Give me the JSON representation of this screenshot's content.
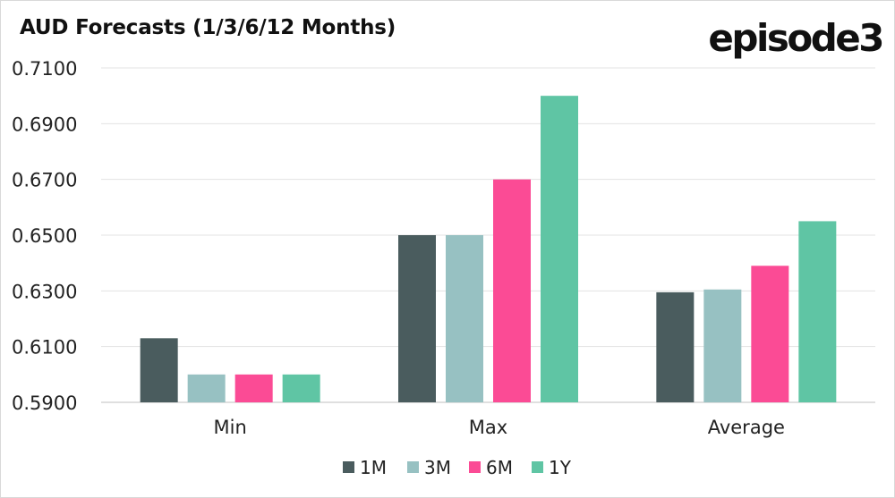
{
  "title": "AUD Forecasts (1/3/6/12 Months)",
  "logo": "episode3",
  "chart_data": {
    "type": "bar",
    "title": "AUD Forecasts (1/3/6/12 Months)",
    "xlabel": "",
    "ylabel": "",
    "categories": [
      "Min",
      "Max",
      "Average"
    ],
    "series": [
      {
        "name": "1M",
        "color": "#4a5c5e",
        "values": [
          0.613,
          0.65,
          0.6295
        ]
      },
      {
        "name": "3M",
        "color": "#97c1c2",
        "values": [
          0.6,
          0.65,
          0.6305
        ]
      },
      {
        "name": "6M",
        "color": "#fb4b95",
        "values": [
          0.6,
          0.67,
          0.639
        ]
      },
      {
        "name": "1Y",
        "color": "#5fc5a4",
        "values": [
          0.6,
          0.7,
          0.655
        ]
      }
    ],
    "ylim": [
      0.59,
      0.71
    ],
    "yticks": [
      "0.5900",
      "0.6100",
      "0.6300",
      "0.6500",
      "0.6700",
      "0.6900",
      "0.7100"
    ],
    "grid": true,
    "legend_position": "bottom"
  }
}
